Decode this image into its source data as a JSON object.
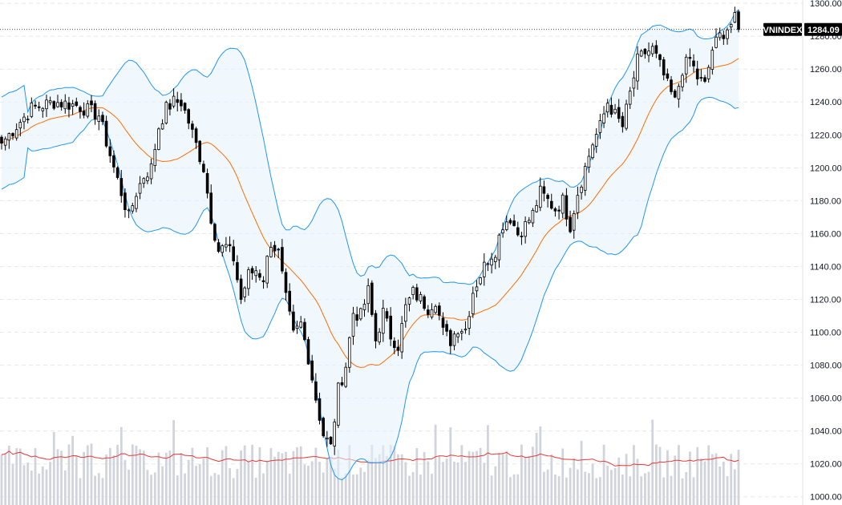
{
  "chart_data": {
    "type": "candlestick",
    "symbol": "VNINDEX",
    "last_price": "1284.09",
    "y_axis": {
      "ylim": [
        995,
        1302
      ],
      "ticks": [
        "1300.00",
        "1280.00",
        "1260.00",
        "1240.00",
        "1220.00",
        "1200.00",
        "1180.00",
        "1160.00",
        "1140.00",
        "1120.00",
        "1100.00",
        "1080.00",
        "1060.00",
        "1040.00",
        "1020.00",
        "1000.00"
      ],
      "position": "right"
    },
    "grid": "horizontal-dashed",
    "indicators": [
      "bollinger-bands",
      "moving-average",
      "volume",
      "volume-moving-average"
    ],
    "colors": {
      "up_candle": "#ffffff",
      "down_candle": "#000000",
      "candle_border": "#000000",
      "band_line": "#2196f3",
      "band_fill": "#e3f2fd",
      "middle_band": "#ff6d00",
      "volume_bar": "#d1d4dc",
      "volume_ma": "#e53935",
      "price_tag": "#000000"
    },
    "anchors": [
      [
        0,
        1215
      ],
      [
        8,
        1236
      ],
      [
        14,
        1240
      ],
      [
        20,
        1238
      ],
      [
        26,
        1232
      ],
      [
        30,
        1200
      ],
      [
        34,
        1170
      ],
      [
        36,
        1185
      ],
      [
        38,
        1195
      ],
      [
        40,
        1200
      ],
      [
        42,
        1225
      ],
      [
        44,
        1236
      ],
      [
        46,
        1240
      ],
      [
        48,
        1240
      ],
      [
        50,
        1228
      ],
      [
        52,
        1214
      ],
      [
        54,
        1200
      ],
      [
        56,
        1170
      ],
      [
        58,
        1150
      ],
      [
        60,
        1152
      ],
      [
        62,
        1145
      ],
      [
        64,
        1120
      ],
      [
        66,
        1135
      ],
      [
        68,
        1138
      ],
      [
        70,
        1133
      ],
      [
        72,
        1155
      ],
      [
        74,
        1148
      ],
      [
        76,
        1120
      ],
      [
        78,
        1098
      ],
      [
        80,
        1105
      ],
      [
        82,
        1085
      ],
      [
        84,
        1060
      ],
      [
        86,
        1038
      ],
      [
        88,
        1030
      ],
      [
        90,
        1065
      ],
      [
        92,
        1080
      ],
      [
        94,
        1112
      ],
      [
        96,
        1110
      ],
      [
        98,
        1125
      ],
      [
        100,
        1095
      ],
      [
        102,
        1112
      ],
      [
        104,
        1098
      ],
      [
        106,
        1092
      ],
      [
        108,
        1115
      ],
      [
        110,
        1124
      ],
      [
        112,
        1120
      ],
      [
        114,
        1115
      ],
      [
        116,
        1120
      ],
      [
        118,
        1100
      ],
      [
        120,
        1095
      ],
      [
        122,
        1103
      ],
      [
        124,
        1102
      ],
      [
        126,
        1125
      ],
      [
        128,
        1135
      ],
      [
        130,
        1145
      ],
      [
        132,
        1150
      ],
      [
        134,
        1166
      ],
      [
        136,
        1170
      ],
      [
        138,
        1160
      ],
      [
        140,
        1165
      ],
      [
        142,
        1172
      ],
      [
        144,
        1185
      ],
      [
        146,
        1180
      ],
      [
        148,
        1175
      ],
      [
        150,
        1180
      ],
      [
        152,
        1165
      ],
      [
        154,
        1185
      ],
      [
        156,
        1200
      ],
      [
        158,
        1215
      ],
      [
        160,
        1225
      ],
      [
        162,
        1240
      ],
      [
        164,
        1232
      ],
      [
        166,
        1225
      ],
      [
        168,
        1245
      ],
      [
        170,
        1265
      ],
      [
        172,
        1270
      ],
      [
        174,
        1272
      ],
      [
        176,
        1262
      ],
      [
        178,
        1250
      ],
      [
        180,
        1240
      ],
      [
        182,
        1260
      ],
      [
        184,
        1266
      ],
      [
        186,
        1255
      ],
      [
        188,
        1250
      ],
      [
        190,
        1272
      ],
      [
        192,
        1280
      ],
      [
        194,
        1285
      ],
      [
        196,
        1290
      ],
      [
        197,
        1284.09
      ]
    ]
  }
}
